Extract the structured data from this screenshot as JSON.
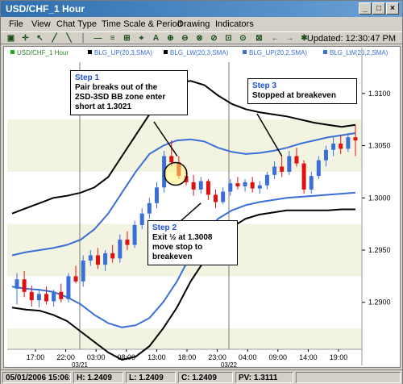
{
  "window": {
    "title": "USD/CHF_1 Hour"
  },
  "menu": [
    "File",
    "View",
    "Chat Type",
    "Time Scale & Period",
    "Drawing",
    "Indicators"
  ],
  "toolbar": {
    "updated": "Updated: 12:30:47 PM",
    "icons": [
      "select-tool-icon",
      "crosshair-icon",
      "cursor-icon",
      "line-tool-icon",
      "trend-line-icon",
      "horizontal-line-icon",
      "vertical-line-icon",
      "channel-icon",
      "fibonacci-icon",
      "text-tool-icon",
      "zoom-in-icon",
      "zoom-out-icon",
      "zoom-box-icon",
      "refresh-icon",
      "grid-icon",
      "scroll-left-icon",
      "scroll-right-icon",
      "settings-icon"
    ]
  },
  "legend": [
    {
      "label": "USD/CHF_1 Hour",
      "color": "#22aa22"
    },
    {
      "label": "BLG_UP(20,3,SMA)",
      "color": "#000000"
    },
    {
      "label": "BLG_LW(20,3,SMA)",
      "color": "#000000"
    },
    {
      "label": "BLG_UP(20,2,SMA)",
      "color": "#3a6fd8"
    },
    {
      "label": "BLG_LW(20,2,SMA)",
      "color": "#3a6fd8"
    }
  ],
  "chart_data": {
    "type": "candlestick",
    "y_ticks": [
      "1.3100",
      "1.3050",
      "1.3000",
      "1.2950",
      "1.2900"
    ],
    "ylim": [
      1.2855,
      1.313
    ],
    "x_ticks": [
      "17:00",
      "22:00",
      "03:00",
      "08:00",
      "13:00",
      "18:00",
      "23:00",
      "04:00",
      "09:00",
      "14:00",
      "19:00"
    ],
    "date_labels": [
      "03/21",
      "03/22"
    ],
    "colors": {
      "up": "#3a6fd8",
      "down": "#e01010",
      "upper3": "#000000",
      "upper2": "#3a6fd8",
      "band_bg": "#f3f3e2"
    },
    "candles": [
      [
        1.2913,
        1.2928,
        1.2898,
        1.2922
      ],
      [
        1.2922,
        1.293,
        1.2905,
        1.291
      ],
      [
        1.291,
        1.2916,
        1.2896,
        1.2902
      ],
      [
        1.2902,
        1.2912,
        1.2895,
        1.2908
      ],
      [
        1.2908,
        1.2915,
        1.2898,
        1.2901
      ],
      [
        1.2901,
        1.2912,
        1.2896,
        1.291
      ],
      [
        1.291,
        1.2918,
        1.29,
        1.2903
      ],
      [
        1.2903,
        1.2928,
        1.29,
        1.2925
      ],
      [
        1.2925,
        1.2935,
        1.2918,
        1.292
      ],
      [
        1.292,
        1.2945,
        1.2915,
        1.294
      ],
      [
        1.294,
        1.295,
        1.2935,
        1.2945
      ],
      [
        1.2945,
        1.2952,
        1.2932,
        1.2936
      ],
      [
        1.2936,
        1.295,
        1.293,
        1.2947
      ],
      [
        1.2947,
        1.2955,
        1.2938,
        1.2942
      ],
      [
        1.2942,
        1.2965,
        1.2938,
        1.296
      ],
      [
        1.296,
        1.2968,
        1.295,
        1.2955
      ],
      [
        1.2955,
        1.2978,
        1.2952,
        1.2974
      ],
      [
        1.2974,
        1.299,
        1.297,
        1.2985
      ],
      [
        1.2985,
        1.3,
        1.298,
        1.2995
      ],
      [
        1.2995,
        1.3015,
        1.299,
        1.301
      ],
      [
        1.301,
        1.3045,
        1.3005,
        1.304
      ],
      [
        1.304,
        1.3055,
        1.303,
        1.3034
      ],
      [
        1.3034,
        1.304,
        1.3018,
        1.3021
      ],
      [
        1.3021,
        1.3028,
        1.3012,
        1.3015
      ],
      [
        1.3015,
        1.3022,
        1.3002,
        1.3008
      ],
      [
        1.3008,
        1.302,
        1.3004,
        1.3016
      ],
      [
        1.3016,
        1.3018,
        1.2998,
        1.3003
      ],
      [
        1.3003,
        1.3008,
        1.299,
        1.2996
      ],
      [
        1.2996,
        1.301,
        1.2994,
        1.3006
      ],
      [
        1.3006,
        1.3018,
        1.3002,
        1.3014
      ],
      [
        1.3014,
        1.302,
        1.3008,
        1.3011
      ],
      [
        1.3011,
        1.3018,
        1.3006,
        1.3015
      ],
      [
        1.3015,
        1.302,
        1.3005,
        1.3009
      ],
      [
        1.3009,
        1.3016,
        1.3004,
        1.3012
      ],
      [
        1.3012,
        1.3025,
        1.3008,
        1.3022
      ],
      [
        1.3022,
        1.3035,
        1.3018,
        1.303
      ],
      [
        1.303,
        1.304,
        1.302,
        1.3025
      ],
      [
        1.3025,
        1.3045,
        1.3022,
        1.304
      ],
      [
        1.304,
        1.3048,
        1.303,
        1.3033
      ],
      [
        1.3033,
        1.3036,
        1.3004,
        1.3008
      ],
      [
        1.3008,
        1.3025,
        1.3004,
        1.3021
      ],
      [
        1.3021,
        1.304,
        1.3018,
        1.3036
      ],
      [
        1.3036,
        1.305,
        1.303,
        1.3046
      ],
      [
        1.3046,
        1.3058,
        1.304,
        1.3052
      ],
      [
        1.3052,
        1.306,
        1.3042,
        1.3047
      ],
      [
        1.3047,
        1.3062,
        1.3044,
        1.3058
      ],
      [
        1.3058,
        1.307,
        1.304,
        1.3055
      ]
    ],
    "upper3": [
      1.2985,
      1.299,
      1.2995,
      1.3,
      1.3002,
      1.3005,
      1.301,
      1.302,
      1.304,
      1.306,
      1.308,
      1.3095,
      1.311,
      1.3112,
      1.3108,
      1.3098,
      1.309,
      1.3085,
      1.3082,
      1.308,
      1.3078,
      1.3075,
      1.3072,
      1.307,
      1.3068,
      1.307
    ],
    "upper2": [
      1.2945,
      1.2948,
      1.295,
      1.2952,
      1.2955,
      1.296,
      1.297,
      1.2985,
      1.3005,
      1.3025,
      1.3042,
      1.305,
      1.3055,
      1.3056,
      1.3054,
      1.3048,
      1.3044,
      1.3042,
      1.3043,
      1.3045,
      1.3048,
      1.3052,
      1.3055,
      1.3058,
      1.306,
      1.3062
    ],
    "lower2": [
      1.2915,
      1.2913,
      1.2912,
      1.291,
      1.2905,
      1.2898,
      1.2888,
      1.288,
      1.2876,
      1.2878,
      1.2885,
      1.29,
      1.292,
      1.2945,
      1.2965,
      1.298,
      1.2988,
      1.2993,
      1.2996,
      1.2998,
      1.3,
      1.3001,
      1.3002,
      1.3003,
      1.3004,
      1.3005
    ],
    "lower3": [
      1.2895,
      1.2893,
      1.2892,
      1.2888,
      1.2882,
      1.2872,
      1.2862,
      1.2852,
      1.2845,
      1.2848,
      1.2858,
      1.2875,
      1.2895,
      1.292,
      1.294,
      1.296,
      1.2972,
      1.298,
      1.2984,
      1.2986,
      1.2988,
      1.2988,
      1.2988,
      1.2988,
      1.2989,
      1.2989
    ]
  },
  "callouts": {
    "step1": {
      "title": "Step 1",
      "body": "Pair breaks out of the\n2SD-3SD BB zone enter\nshort at 1.3021"
    },
    "step2": {
      "title": "Step 2",
      "body": "Exit ½ at 1.3008\nmove stop to\nbreakeven"
    },
    "step3": {
      "title": "Step 3",
      "body": "Stopped at breakeven"
    }
  },
  "status": {
    "datetime": "05/01/2006 15:06:00",
    "high": "H: 1.2409",
    "low": "L: 1.2409",
    "close": "C: 1.2409",
    "pv": "PV: 1.3111"
  }
}
